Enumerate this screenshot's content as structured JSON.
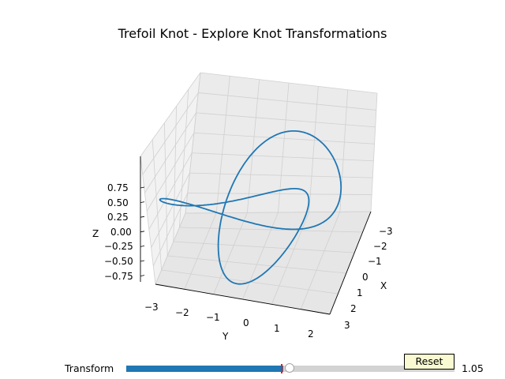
{
  "title": "Trefoil Knot - Explore Knot Transformations",
  "axes": {
    "xlabel": "X",
    "ylabel": "Y",
    "zlabel": "Z",
    "x_ticks": [
      "−3",
      "−2",
      "−1",
      "0",
      "1",
      "2",
      "3"
    ],
    "y_ticks": [
      "−3",
      "−2",
      "−1",
      "0",
      "1",
      "2"
    ],
    "z_ticks": [
      "0.75",
      "0.50",
      "0.25",
      "0.00",
      "−0.25",
      "−0.50",
      "−0.75"
    ]
  },
  "slider": {
    "label": "Transform",
    "value_text": "1.05",
    "value": 1.05,
    "fill_fraction": 0.48
  },
  "reset_label": "Reset",
  "colors": {
    "curve": "#1f77b4",
    "slider_fill": "#1f77b4",
    "slider_track": "#d3d3d3",
    "slider_init_marker": "#d62728",
    "reset_bg": "#fafad2",
    "pane": "#f2f2f2",
    "grid": "#d0d0d0"
  },
  "chart_data": {
    "type": "line",
    "projection": "3d",
    "title": "Trefoil Knot - Explore Knot Transformations",
    "xlabel": "X",
    "ylabel": "Y",
    "zlabel": "Z",
    "xlim": [
      -3,
      3
    ],
    "ylim": [
      -3.3,
      2.3
    ],
    "zlim": [
      -0.85,
      0.85
    ],
    "grid": true,
    "series": [
      {
        "curve": "trefoil knot",
        "parametric": "x = sin(t) + 2 sin(2t), y = cos(t) - 2 cos(2t), z = -sin(3t)"
      }
    ]
  }
}
